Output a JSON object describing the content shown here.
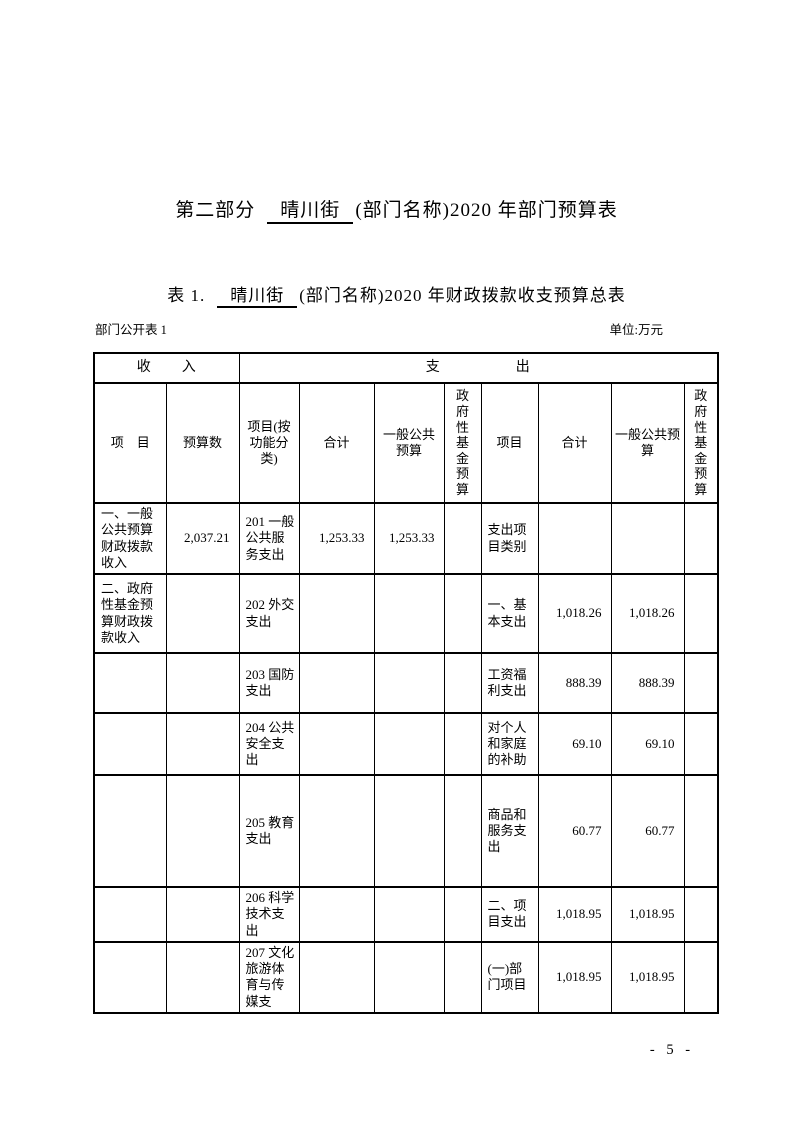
{
  "titles": {
    "section": {
      "prefix": "第二部分",
      "department": "晴川街",
      "suffix": "(部门名称)2020 年部门预算表"
    },
    "table": {
      "prefix": "表 1.",
      "department": "晴川街",
      "suffix": "(部门名称)2020 年财政拨款收支预算总表"
    }
  },
  "meta": {
    "table_label": "部门公开表 1",
    "unit_label": "单位:万元"
  },
  "table": {
    "group_headers": {
      "income": "收　　入",
      "expenditure": "支　　　　　出"
    },
    "column_headers": [
      "项　目",
      "预算数",
      "项目(按功能分类)",
      "合计",
      "一般公共预算",
      "政府性基金预算",
      "项目",
      "合计",
      "一般公共预算",
      "政府性基金预算"
    ],
    "rows": [
      [
        "一、一般公共预算财政拨款收入",
        "2,037.21",
        "201 一般公共服务支出",
        "1,253.33",
        "1,253.33",
        "",
        "支出项目类别",
        "",
        "",
        ""
      ],
      [
        "二、政府性基金预算财政拨款收入",
        "",
        "202 外交支出",
        "",
        "",
        "",
        "一、基本支出",
        "1,018.26",
        "1,018.26",
        ""
      ],
      [
        "",
        "",
        "203 国防支出",
        "",
        "",
        "",
        "工资福利支出",
        "888.39",
        "888.39",
        ""
      ],
      [
        "",
        "",
        "204 公共安全支出",
        "",
        "",
        "",
        "对个人和家庭的补助",
        "69.10",
        "69.10",
        ""
      ],
      [
        "",
        "",
        "205 教育支出",
        "",
        "",
        "",
        "商品和服务支出",
        "60.77",
        "60.77",
        ""
      ],
      [
        "",
        "",
        "206 科学技术支出",
        "",
        "",
        "",
        "二、项目支出",
        "1,018.95",
        "1,018.95",
        ""
      ],
      [
        "",
        "",
        "207 文化旅游体育与传媒支",
        "",
        "",
        "",
        "(一)部门项目",
        "1,018.95",
        "1,018.95",
        ""
      ]
    ]
  },
  "footer": {
    "page_number": "- 5 -"
  }
}
